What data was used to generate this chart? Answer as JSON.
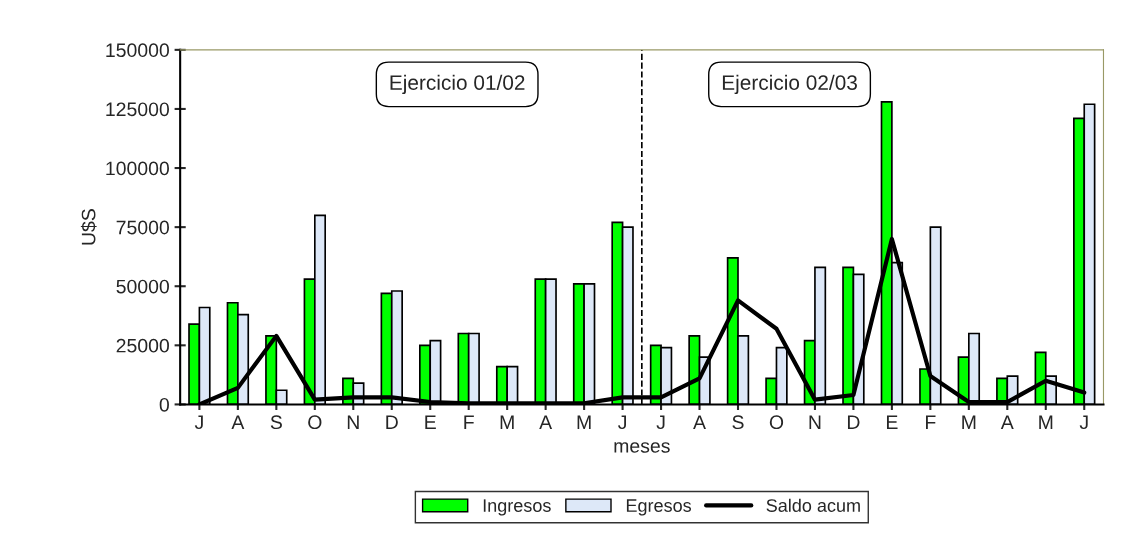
{
  "chart_data": {
    "type": "bar",
    "xlabel": "meses",
    "ylabel": "U$S",
    "categories": [
      "J",
      "A",
      "S",
      "O",
      "N",
      "D",
      "E",
      "F",
      "M",
      "A",
      "M",
      "J",
      "J",
      "A",
      "S",
      "O",
      "N",
      "D",
      "E",
      "F",
      "M",
      "A",
      "M",
      "J"
    ],
    "series": [
      {
        "name": "Ingresos",
        "color": "#00ff00",
        "values": [
          34000,
          43000,
          29000,
          53000,
          11000,
          47000,
          25000,
          30000,
          16000,
          53000,
          51000,
          77000,
          25000,
          29000,
          62000,
          11000,
          27000,
          58000,
          128000,
          15000,
          20000,
          11000,
          22000,
          121000
        ]
      },
      {
        "name": "Egresos",
        "color": "#dde8f8",
        "values": [
          41000,
          38000,
          6000,
          80000,
          9000,
          48000,
          27000,
          30000,
          16000,
          53000,
          51000,
          75000,
          24000,
          20000,
          29000,
          24000,
          58000,
          55000,
          60000,
          75000,
          30000,
          12000,
          12000,
          127000
        ]
      },
      {
        "name": "Saldo acum",
        "type": "line",
        "color": "#000000",
        "values": [
          0,
          7000,
          29000,
          2000,
          3000,
          3000,
          1000,
          500,
          500,
          500,
          500,
          3000,
          3000,
          11000,
          44000,
          32000,
          2000,
          4000,
          70000,
          12000,
          1000,
          1000,
          10000,
          5000
        ]
      }
    ],
    "ylim": [
      0,
      150000
    ],
    "yticks": [
      0,
      25000,
      50000,
      75000,
      100000,
      125000,
      150000
    ],
    "annotations": [
      "Ejercicio 01/02",
      "Ejercicio 02/03"
    ],
    "grid": false,
    "legend": "bottom"
  }
}
